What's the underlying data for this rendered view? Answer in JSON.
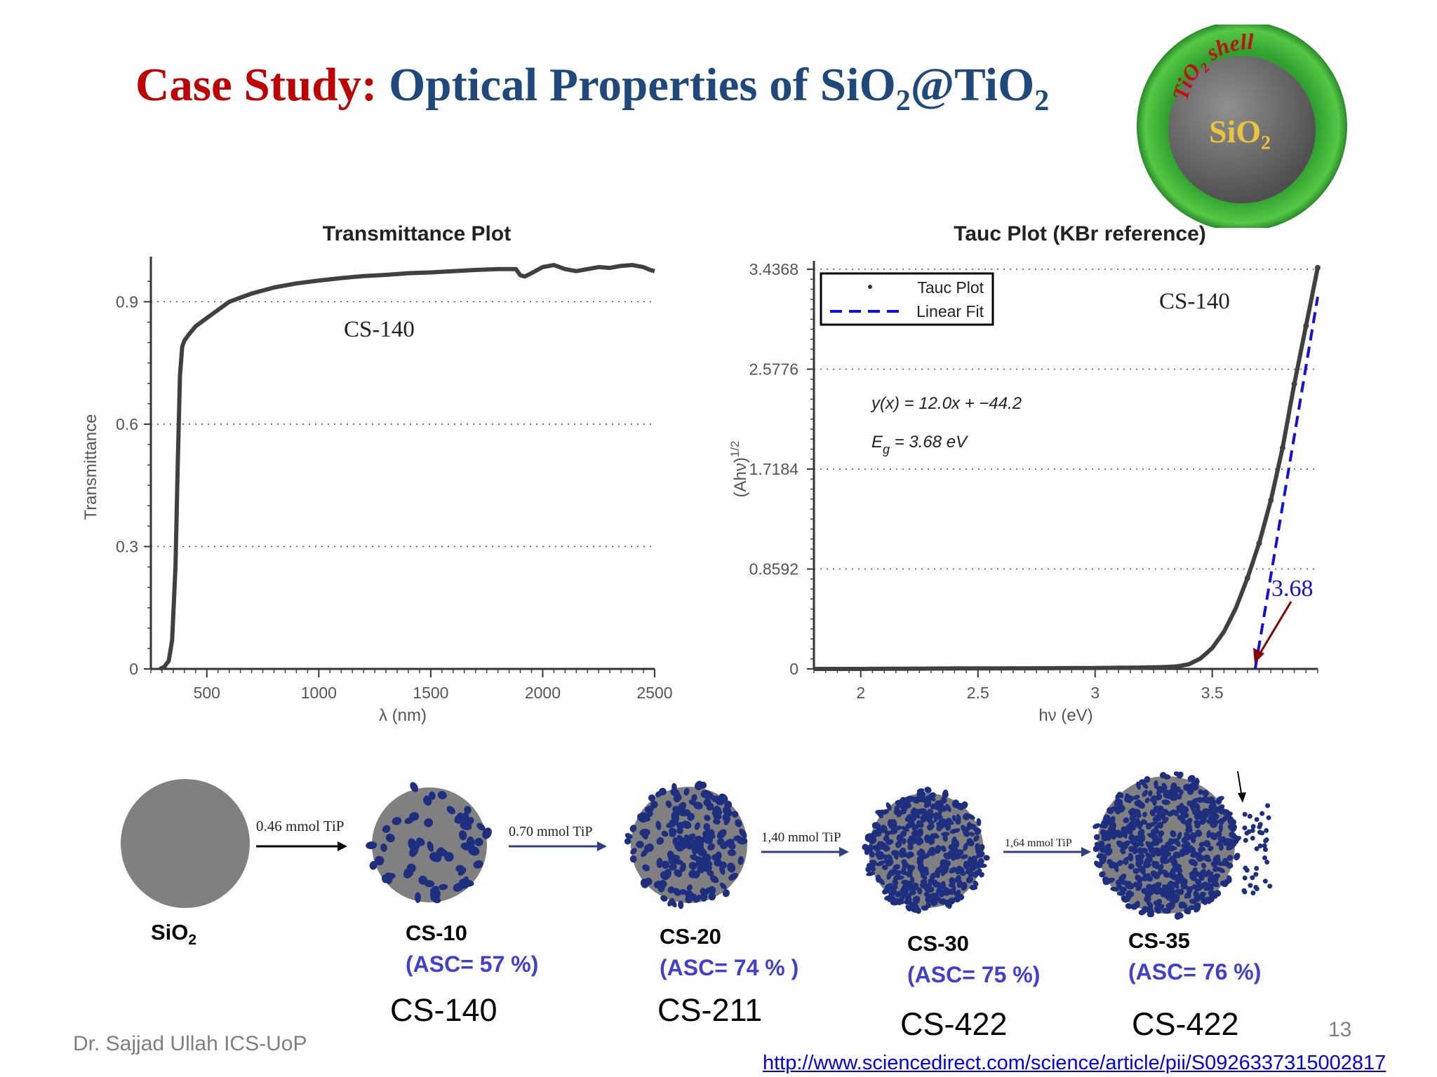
{
  "slide": {
    "title_lead": "Case Study:",
    "title_main": "Optical Properties of SiO",
    "title_sub1": "2",
    "title_mid": "@TiO",
    "title_sub2": "2",
    "logo": {
      "shell_text": "TiO₂ shell",
      "core_text": "SiO₂",
      "colors": {
        "shell": "#3cb53c",
        "core": "#6e6e6e",
        "text": "#e8c53a",
        "shell_text": "#c01010"
      }
    },
    "footer_author": "Dr. Sajjad Ullah ICS-UoP",
    "page_number": "13",
    "source_url": "http://www.sciencedirect.com/science/article/pii/S0926337315002817"
  },
  "chart_data": [
    {
      "type": "line",
      "title": "Transmittance Plot",
      "xlabel": "λ (nm)",
      "ylabel": "Transmittance",
      "xlim": [
        250,
        2500
      ],
      "ylim": [
        0,
        0.99
      ],
      "xticks": [
        "500",
        "1000",
        "1500",
        "2000",
        "2500"
      ],
      "yticks": [
        "0",
        "0.3",
        "0.6",
        "0.9"
      ],
      "grid": "horizontal-dotted",
      "annotation": "CS-140",
      "color": "#404040",
      "series": [
        {
          "x": [
            290,
            310,
            330,
            345,
            360,
            370,
            380,
            390,
            400,
            420,
            450,
            500,
            550,
            600,
            650,
            700,
            800,
            900,
            1000,
            1100,
            1200,
            1300,
            1400,
            1500,
            1600,
            1700,
            1800,
            1880,
            1900,
            1920,
            1950,
            2000,
            2050,
            2100,
            2150,
            2200,
            2250,
            2300,
            2350,
            2400,
            2450,
            2480,
            2500
          ],
          "y": [
            0.0,
            0.005,
            0.02,
            0.07,
            0.25,
            0.5,
            0.72,
            0.79,
            0.805,
            0.82,
            0.84,
            0.86,
            0.88,
            0.9,
            0.91,
            0.92,
            0.935,
            0.945,
            0.952,
            0.958,
            0.963,
            0.966,
            0.97,
            0.972,
            0.975,
            0.978,
            0.98,
            0.98,
            0.965,
            0.962,
            0.97,
            0.985,
            0.99,
            0.98,
            0.975,
            0.98,
            0.985,
            0.983,
            0.988,
            0.99,
            0.985,
            0.978,
            0.975
          ]
        }
      ]
    },
    {
      "type": "scatter",
      "title": "Tauc Plot (KBr reference)",
      "xlabel": "hν (eV)",
      "ylabel": "(Ahν)",
      "ylabel_sup": "1/2",
      "xlim": [
        1.8,
        3.95
      ],
      "ylim": [
        0,
        3.4368
      ],
      "xticks": [
        "2",
        "2.5",
        "3",
        "3.5"
      ],
      "yticks": [
        "0",
        "0.8592",
        "1.7184",
        "2.5776",
        "3.4368"
      ],
      "grid": "horizontal-dotted",
      "legend": {
        "placement": "top-left",
        "entries": [
          "Tauc Plot",
          "Linear Fit"
        ]
      },
      "annotation_sample": "CS-140",
      "equation": "y(x) = 12.0x + −44.2",
      "eg_label": "E",
      "eg_sub": "g",
      "eg_value": " = 3.68 eV",
      "intercept_label": "3.68",
      "colors": {
        "data": "#404040",
        "fit": "#1010e0",
        "arrow": "#8b0000"
      },
      "series": [
        {
          "name": "Tauc Plot",
          "x": [
            1.8,
            2.0,
            2.2,
            2.4,
            2.6,
            2.8,
            3.0,
            3.1,
            3.2,
            3.3,
            3.35,
            3.4,
            3.45,
            3.5,
            3.55,
            3.6,
            3.65,
            3.7,
            3.75,
            3.8,
            3.85,
            3.9,
            3.95
          ],
          "y": [
            0.0,
            0.0,
            0.002,
            0.004,
            0.005,
            0.006,
            0.008,
            0.01,
            0.012,
            0.016,
            0.022,
            0.04,
            0.09,
            0.18,
            0.32,
            0.52,
            0.78,
            1.08,
            1.45,
            1.9,
            2.45,
            2.95,
            3.45
          ]
        },
        {
          "name": "Linear Fit",
          "x": [
            3.683,
            3.95
          ],
          "y": [
            0,
            3.2
          ]
        }
      ]
    }
  ],
  "scheme": {
    "stages": [
      {
        "name": "SiO",
        "name_sub": "2",
        "asc": "",
        "code": ""
      },
      {
        "name": "CS-10",
        "name_sub": "",
        "asc": "(ASC= 57 %)",
        "code": "CS-140"
      },
      {
        "name": "CS-20",
        "name_sub": "",
        "asc": "(ASC= 74 % )",
        "code": "CS-211"
      },
      {
        "name": "CS-30",
        "name_sub": "",
        "asc": "(ASC= 75 %)",
        "code": "CS-422"
      },
      {
        "name": "CS-35",
        "name_sub": "",
        "asc": "(ASC= 76 %)",
        "code": "CS-422"
      }
    ],
    "arrows": [
      "0.46 mmol TiP",
      "0.70 mmol TiP",
      "1,40 mmol TiP",
      "1,64 mmol TiP"
    ],
    "colors": {
      "core": "#808080",
      "dots": "#1f2f80"
    }
  }
}
